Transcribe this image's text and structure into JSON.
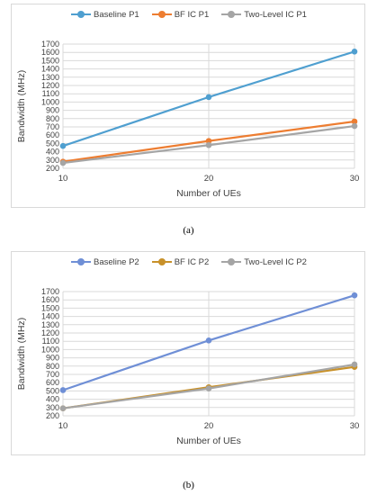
{
  "captions": [
    "(a)",
    "(b)"
  ],
  "chart_data": [
    {
      "type": "line",
      "title": "",
      "xlabel": "Number of UEs",
      "ylabel": "Bandwidth (MHz)",
      "x": [
        10,
        20,
        30
      ],
      "ylim": [
        200,
        1700
      ],
      "yticks": [
        200,
        300,
        400,
        500,
        600,
        700,
        800,
        900,
        1000,
        1100,
        1200,
        1300,
        1400,
        1500,
        1600,
        1700
      ],
      "grid": true,
      "legend_position": "top",
      "series": [
        {
          "name": "Baseline P1",
          "color": "#4f9fd0",
          "values": [
            470,
            1060,
            1610
          ]
        },
        {
          "name": "BF IC P1",
          "color": "#ed7d31",
          "values": [
            280,
            530,
            765
          ]
        },
        {
          "name": "Two-Level IC P1",
          "color": "#a5a5a5",
          "values": [
            265,
            480,
            710
          ]
        }
      ]
    },
    {
      "type": "line",
      "title": "",
      "xlabel": "Number of UEs",
      "ylabel": "Bandwidth (MHz)",
      "x": [
        10,
        20,
        30
      ],
      "ylim": [
        200,
        1700
      ],
      "yticks": [
        200,
        300,
        400,
        500,
        600,
        700,
        800,
        900,
        1000,
        1100,
        1200,
        1300,
        1400,
        1500,
        1600,
        1700
      ],
      "grid": true,
      "legend_position": "top",
      "series": [
        {
          "name": "Baseline P2",
          "color": "#6f8fd6",
          "values": [
            510,
            1110,
            1655
          ]
        },
        {
          "name": "BF IC P2",
          "color": "#c8912a",
          "values": [
            290,
            545,
            790
          ]
        },
        {
          "name": "Two-Level IC P2",
          "color": "#a5a5a5",
          "values": [
            290,
            530,
            820
          ]
        }
      ]
    }
  ]
}
